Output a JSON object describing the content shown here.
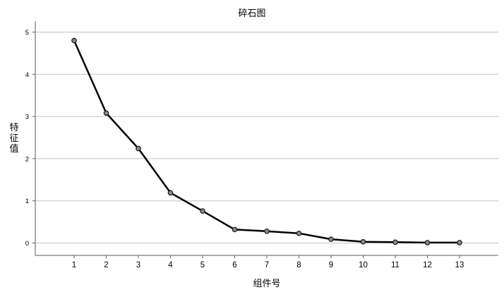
{
  "chart_data": {
    "type": "line",
    "title": "碎石图",
    "xlabel": "组件号",
    "ylabel": "特征值",
    "x": [
      1,
      2,
      3,
      4,
      5,
      6,
      7,
      8,
      9,
      10,
      11,
      12,
      13
    ],
    "series": [
      {
        "values": [
          4.8,
          3.08,
          2.24,
          1.19,
          0.76,
          0.32,
          0.28,
          0.23,
          0.09,
          0.03,
          0.02,
          0.01,
          0.01
        ]
      }
    ],
    "ylim": [
      0,
      5
    ],
    "yticks": [
      0,
      1,
      2,
      3,
      4,
      5
    ],
    "grid": "horizontal",
    "colors": {
      "line": "#000000",
      "marker_fill": "#8a8a8a",
      "marker_stroke": "#1a1a1a",
      "grid": "#c2c2c2"
    }
  }
}
